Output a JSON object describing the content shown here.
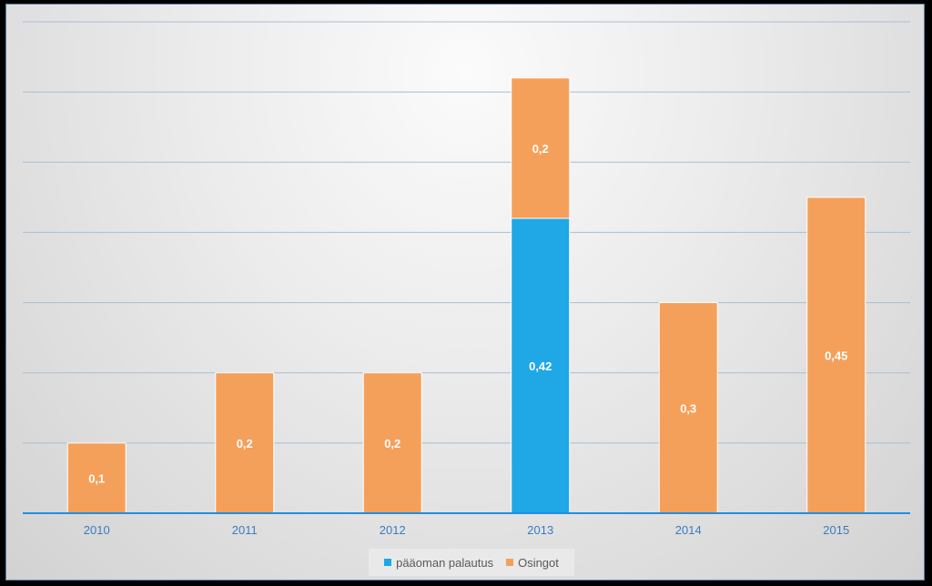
{
  "chart_data": {
    "type": "bar",
    "stacked": true,
    "categories": [
      "2010",
      "2011",
      "2012",
      "2013",
      "2014",
      "2015"
    ],
    "series": [
      {
        "name": "pääoman palautus",
        "values": [
          0,
          0,
          0,
          0.42,
          0,
          0
        ],
        "color": "#1fa7e6",
        "labels": [
          "",
          "",
          "",
          "0,42",
          "",
          ""
        ]
      },
      {
        "name": "Osingot",
        "values": [
          0.1,
          0.2,
          0.2,
          0.2,
          0.3,
          0.45
        ],
        "color": "#f5a05a",
        "labels": [
          "0,1",
          "0,2",
          "0,2",
          "0,2",
          "0,3",
          "0,45"
        ]
      }
    ],
    "ylim": [
      0,
      0.7
    ],
    "gridlines": [
      0.1,
      0.2,
      0.3,
      0.4,
      0.5,
      0.6,
      0.7
    ],
    "legend": "bottom",
    "axis_color": "#1f8fe0",
    "tick_label_color": "#3a7cc0",
    "grid_color": "#a9bdd3"
  }
}
